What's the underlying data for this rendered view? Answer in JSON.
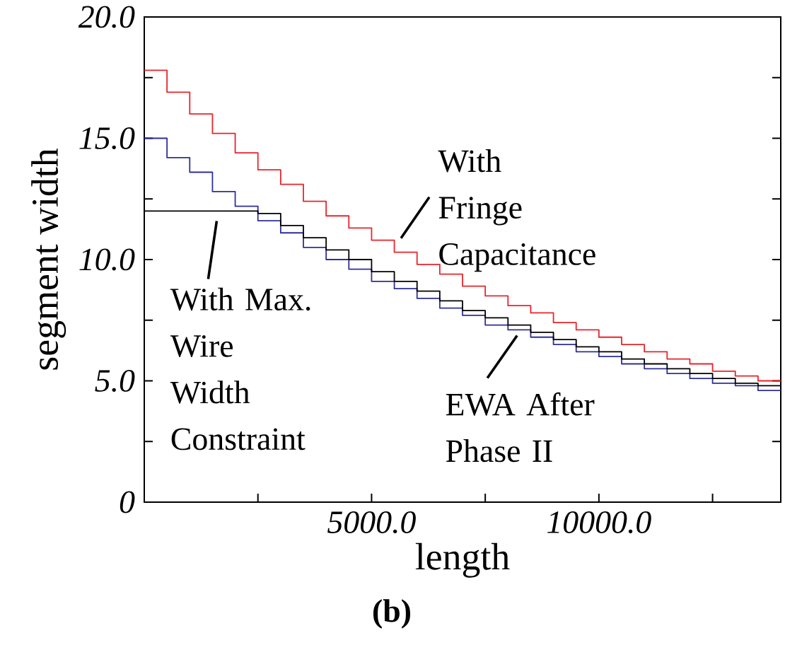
{
  "chart_data": {
    "type": "step",
    "xlabel": "length",
    "ylabel": "segment width",
    "x": [
      0,
      500,
      1000,
      1500,
      2000,
      2500,
      3000,
      3500,
      4000,
      4500,
      5000,
      5500,
      6000,
      6500,
      7000,
      7500,
      8000,
      8500,
      9000,
      9500,
      10000,
      10500,
      11000,
      11500,
      12000,
      12500,
      13000,
      13500,
      14000
    ],
    "series": [
      {
        "color": "#e8242a",
        "values": [
          17.8,
          16.9,
          16.0,
          15.2,
          14.4,
          13.7,
          13.1,
          12.4,
          11.8,
          11.3,
          10.8,
          10.3,
          9.8,
          9.4,
          8.9,
          8.5,
          8.1,
          7.8,
          7.4,
          7.1,
          6.8,
          6.5,
          6.2,
          5.9,
          5.7,
          5.4,
          5.2,
          5.0,
          5.0
        ]
      },
      {
        "color": "#2e2e9a",
        "values": [
          15.0,
          14.2,
          13.6,
          12.8,
          12.2,
          11.6,
          11.1,
          10.5,
          10.0,
          9.6,
          9.1,
          8.8,
          8.4,
          8.0,
          7.7,
          7.3,
          7.1,
          6.8,
          6.5,
          6.2,
          6.0,
          5.7,
          5.5,
          5.3,
          5.1,
          4.9,
          4.8,
          4.6,
          4.6
        ]
      },
      {
        "color": "#000000",
        "values": [
          12.0,
          12.0,
          12.0,
          12.0,
          12.0,
          11.9,
          11.4,
          10.9,
          10.4,
          10.0,
          9.5,
          9.1,
          8.7,
          8.3,
          7.9,
          7.6,
          7.3,
          7.0,
          6.7,
          6.4,
          6.2,
          5.9,
          5.7,
          5.5,
          5.3,
          5.1,
          4.9,
          4.8,
          4.8
        ]
      }
    ],
    "xlim": [
      0,
      14000
    ],
    "ylim": [
      0,
      20
    ],
    "xticks": [
      {
        "value": 2500,
        "label": null
      },
      {
        "value": 5000,
        "label": "5000.0"
      },
      {
        "value": 7500,
        "label": null
      },
      {
        "value": 10000,
        "label": "10000.0"
      },
      {
        "value": 12500,
        "label": null
      }
    ],
    "yticks": [
      0,
      {
        "value": 2.5,
        "label": null
      },
      {
        "value": 5,
        "label": "5.0"
      },
      {
        "value": 7.5,
        "label": null
      },
      {
        "value": 10,
        "label": "10.0"
      },
      {
        "value": 12.5,
        "label": null
      },
      {
        "value": 15,
        "label": "15.0"
      },
      {
        "value": 17.5,
        "label": null
      },
      {
        "value": 20,
        "label": "20.0"
      }
    ],
    "marker": "none",
    "line_style": "solid",
    "grid": false,
    "annotations": [
      {
        "text": "With Fringe Capacitance",
        "x": 5600,
        "y": 10.3
      },
      {
        "text": "With Max. Wire Width Constraint",
        "x": 1500,
        "y": 12.0
      },
      {
        "text": "EWA After Phase II",
        "x": 8200,
        "y": 7.1
      },
      "(b)"
    ]
  }
}
